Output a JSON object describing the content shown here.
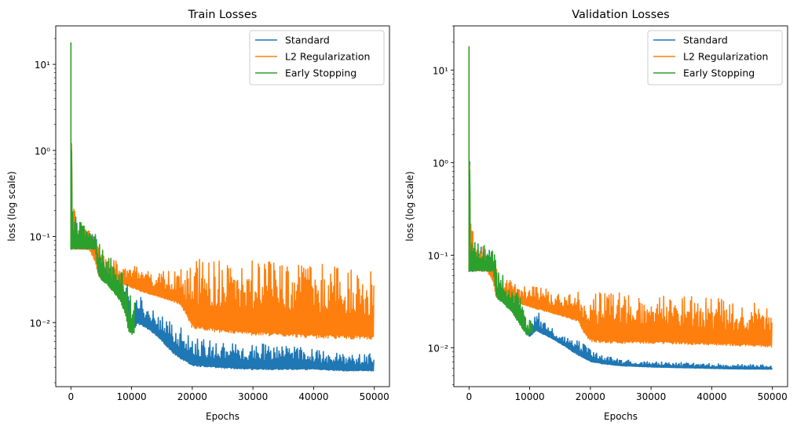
{
  "chart_data": [
    {
      "type": "line",
      "title": "Train Losses",
      "xlabel": "Epochs",
      "ylabel": "loss (log scale)",
      "yscale": "log",
      "xlim": [
        -2500,
        52500
      ],
      "ylim": [
        0.0018,
        28
      ],
      "xticks": [
        0,
        10000,
        20000,
        30000,
        40000,
        50000
      ],
      "xtick_labels": [
        "0",
        "10000",
        "20000",
        "30000",
        "40000",
        "50000"
      ],
      "yticks": [
        0.01,
        0.1,
        1,
        10
      ],
      "ytick_labels": [
        "10⁻²",
        "10⁻¹",
        "10⁰",
        "10¹"
      ],
      "grid": false,
      "legend": "top-right",
      "series": [
        {
          "name": "Standard",
          "color": "#1f77b4",
          "x": [
            0,
            200,
            500,
            1000,
            2000,
            3000,
            4000,
            4500,
            5000,
            6000,
            7000,
            8000,
            9000,
            9500,
            10000,
            11000,
            12000,
            13000,
            14000,
            15000,
            16000,
            17000,
            18000,
            19000,
            20000,
            22000,
            25000,
            30000,
            35000,
            40000,
            45000,
            50000
          ],
          "upper": [
            18.0,
            0.3,
            0.2,
            0.15,
            0.13,
            0.12,
            0.12,
            0.07,
            0.065,
            0.055,
            0.045,
            0.038,
            0.03,
            0.02,
            0.014,
            0.026,
            0.018,
            0.015,
            0.013,
            0.012,
            0.011,
            0.01,
            0.0095,
            0.0085,
            0.0075,
            0.0065,
            0.006,
            0.0058,
            0.0056,
            0.005,
            0.0045,
            0.0045
          ],
          "lower": [
            18.0,
            0.07,
            0.07,
            0.07,
            0.07,
            0.07,
            0.07,
            0.035,
            0.031,
            0.03,
            0.025,
            0.02,
            0.016,
            0.0095,
            0.0075,
            0.0095,
            0.0088,
            0.008,
            0.007,
            0.006,
            0.005,
            0.0042,
            0.0037,
            0.0034,
            0.0031,
            0.003,
            0.0029,
            0.0028,
            0.0028,
            0.0028,
            0.0027,
            0.0027
          ]
        },
        {
          "name": "L2 Regularization",
          "color": "#ff7f0e",
          "x": [
            0,
            200,
            500,
            1000,
            2000,
            3000,
            4000,
            4500,
            5000,
            6000,
            7000,
            8000,
            10000,
            12000,
            14000,
            16000,
            17000,
            18000,
            19000,
            20000,
            22000,
            25000,
            30000,
            35000,
            40000,
            45000,
            50000
          ],
          "upper": [
            18.0,
            0.28,
            0.22,
            0.16,
            0.13,
            0.12,
            0.1,
            0.08,
            0.07,
            0.06,
            0.058,
            0.055,
            0.05,
            0.045,
            0.042,
            0.04,
            0.045,
            0.042,
            0.04,
            0.06,
            0.055,
            0.052,
            0.055,
            0.052,
            0.05,
            0.045,
            0.04
          ],
          "lower": [
            18.0,
            0.07,
            0.07,
            0.07,
            0.07,
            0.07,
            0.05,
            0.035,
            0.031,
            0.031,
            0.03,
            0.028,
            0.025,
            0.022,
            0.02,
            0.018,
            0.017,
            0.016,
            0.012,
            0.0085,
            0.008,
            0.0075,
            0.007,
            0.0068,
            0.0065,
            0.0064,
            0.0063
          ]
        },
        {
          "name": "Early Stopping",
          "color": "#2ca02c",
          "x": [
            0,
            200,
            500,
            1000,
            2000,
            3000,
            4000,
            4500,
            5000,
            6000,
            7000,
            8000,
            9000,
            9500,
            10000,
            10500
          ],
          "upper": [
            18.0,
            0.31,
            0.22,
            0.16,
            0.14,
            0.13,
            0.13,
            0.09,
            0.075,
            0.065,
            0.055,
            0.045,
            0.035,
            0.025,
            0.02,
            0.018
          ],
          "lower": [
            18.0,
            0.07,
            0.07,
            0.07,
            0.07,
            0.07,
            0.07,
            0.035,
            0.031,
            0.027,
            0.022,
            0.018,
            0.012,
            0.0075,
            0.0072,
            0.0072
          ]
        }
      ]
    },
    {
      "type": "line",
      "title": "Validation Losses",
      "xlabel": "Epochs",
      "ylabel": "loss (log scale)",
      "yscale": "log",
      "xlim": [
        -2500,
        52500
      ],
      "ylim": [
        0.0038,
        30
      ],
      "xticks": [
        0,
        10000,
        20000,
        30000,
        40000,
        50000
      ],
      "xtick_labels": [
        "0",
        "10000",
        "20000",
        "30000",
        "40000",
        "50000"
      ],
      "yticks": [
        0.01,
        0.1,
        1,
        10
      ],
      "ytick_labels": [
        "10⁻²",
        "10⁻¹",
        "10⁰",
        "10¹"
      ],
      "grid": false,
      "legend": "top-right",
      "series": [
        {
          "name": "Standard",
          "color": "#1f77b4",
          "x": [
            0,
            200,
            500,
            1000,
            2000,
            3000,
            4000,
            4500,
            5000,
            6000,
            7000,
            8000,
            9000,
            9500,
            10000,
            11000,
            12000,
            13000,
            14000,
            15000,
            16000,
            17000,
            18000,
            19000,
            20000,
            22000,
            25000,
            30000,
            35000,
            40000,
            45000,
            50000
          ],
          "upper": [
            18.0,
            0.27,
            0.18,
            0.14,
            0.13,
            0.12,
            0.11,
            0.07,
            0.06,
            0.05,
            0.04,
            0.032,
            0.024,
            0.018,
            0.017,
            0.03,
            0.02,
            0.018,
            0.016,
            0.015,
            0.014,
            0.013,
            0.012,
            0.011,
            0.01,
            0.0085,
            0.0075,
            0.0072,
            0.007,
            0.0068,
            0.0067,
            0.0066
          ],
          "lower": [
            18.0,
            0.066,
            0.066,
            0.066,
            0.066,
            0.066,
            0.066,
            0.034,
            0.032,
            0.03,
            0.026,
            0.022,
            0.018,
            0.014,
            0.013,
            0.015,
            0.014,
            0.013,
            0.012,
            0.011,
            0.01,
            0.009,
            0.0082,
            0.0075,
            0.007,
            0.0066,
            0.0063,
            0.0061,
            0.006,
            0.0059,
            0.0058,
            0.0058
          ]
        },
        {
          "name": "L2 Regularization",
          "color": "#ff7f0e",
          "x": [
            0,
            200,
            500,
            1000,
            2000,
            3000,
            4000,
            4500,
            5000,
            6000,
            7000,
            8000,
            10000,
            12000,
            14000,
            16000,
            17000,
            18000,
            19000,
            20000,
            22000,
            25000,
            30000,
            35000,
            40000,
            45000,
            50000
          ],
          "upper": [
            18.0,
            0.26,
            0.2,
            0.15,
            0.13,
            0.12,
            0.1,
            0.08,
            0.065,
            0.06,
            0.055,
            0.05,
            0.048,
            0.045,
            0.042,
            0.04,
            0.04,
            0.042,
            0.04,
            0.045,
            0.042,
            0.04,
            0.04,
            0.038,
            0.035,
            0.032,
            0.03
          ],
          "lower": [
            18.0,
            0.066,
            0.066,
            0.066,
            0.066,
            0.066,
            0.05,
            0.034,
            0.033,
            0.033,
            0.032,
            0.03,
            0.027,
            0.025,
            0.023,
            0.021,
            0.02,
            0.019,
            0.014,
            0.0115,
            0.0112,
            0.011,
            0.011,
            0.0108,
            0.0105,
            0.0103,
            0.01
          ]
        },
        {
          "name": "Early Stopping",
          "color": "#2ca02c",
          "x": [
            0,
            200,
            500,
            1000,
            2000,
            3000,
            4000,
            4500,
            5000,
            6000,
            7000,
            8000,
            9000,
            9500,
            10000,
            10500
          ],
          "upper": [
            18.0,
            0.27,
            0.19,
            0.15,
            0.14,
            0.13,
            0.12,
            0.08,
            0.07,
            0.06,
            0.05,
            0.04,
            0.03,
            0.022,
            0.02,
            0.02
          ],
          "lower": [
            18.0,
            0.066,
            0.066,
            0.066,
            0.066,
            0.066,
            0.066,
            0.034,
            0.032,
            0.028,
            0.024,
            0.019,
            0.015,
            0.0135,
            0.014,
            0.015
          ]
        }
      ]
    }
  ]
}
